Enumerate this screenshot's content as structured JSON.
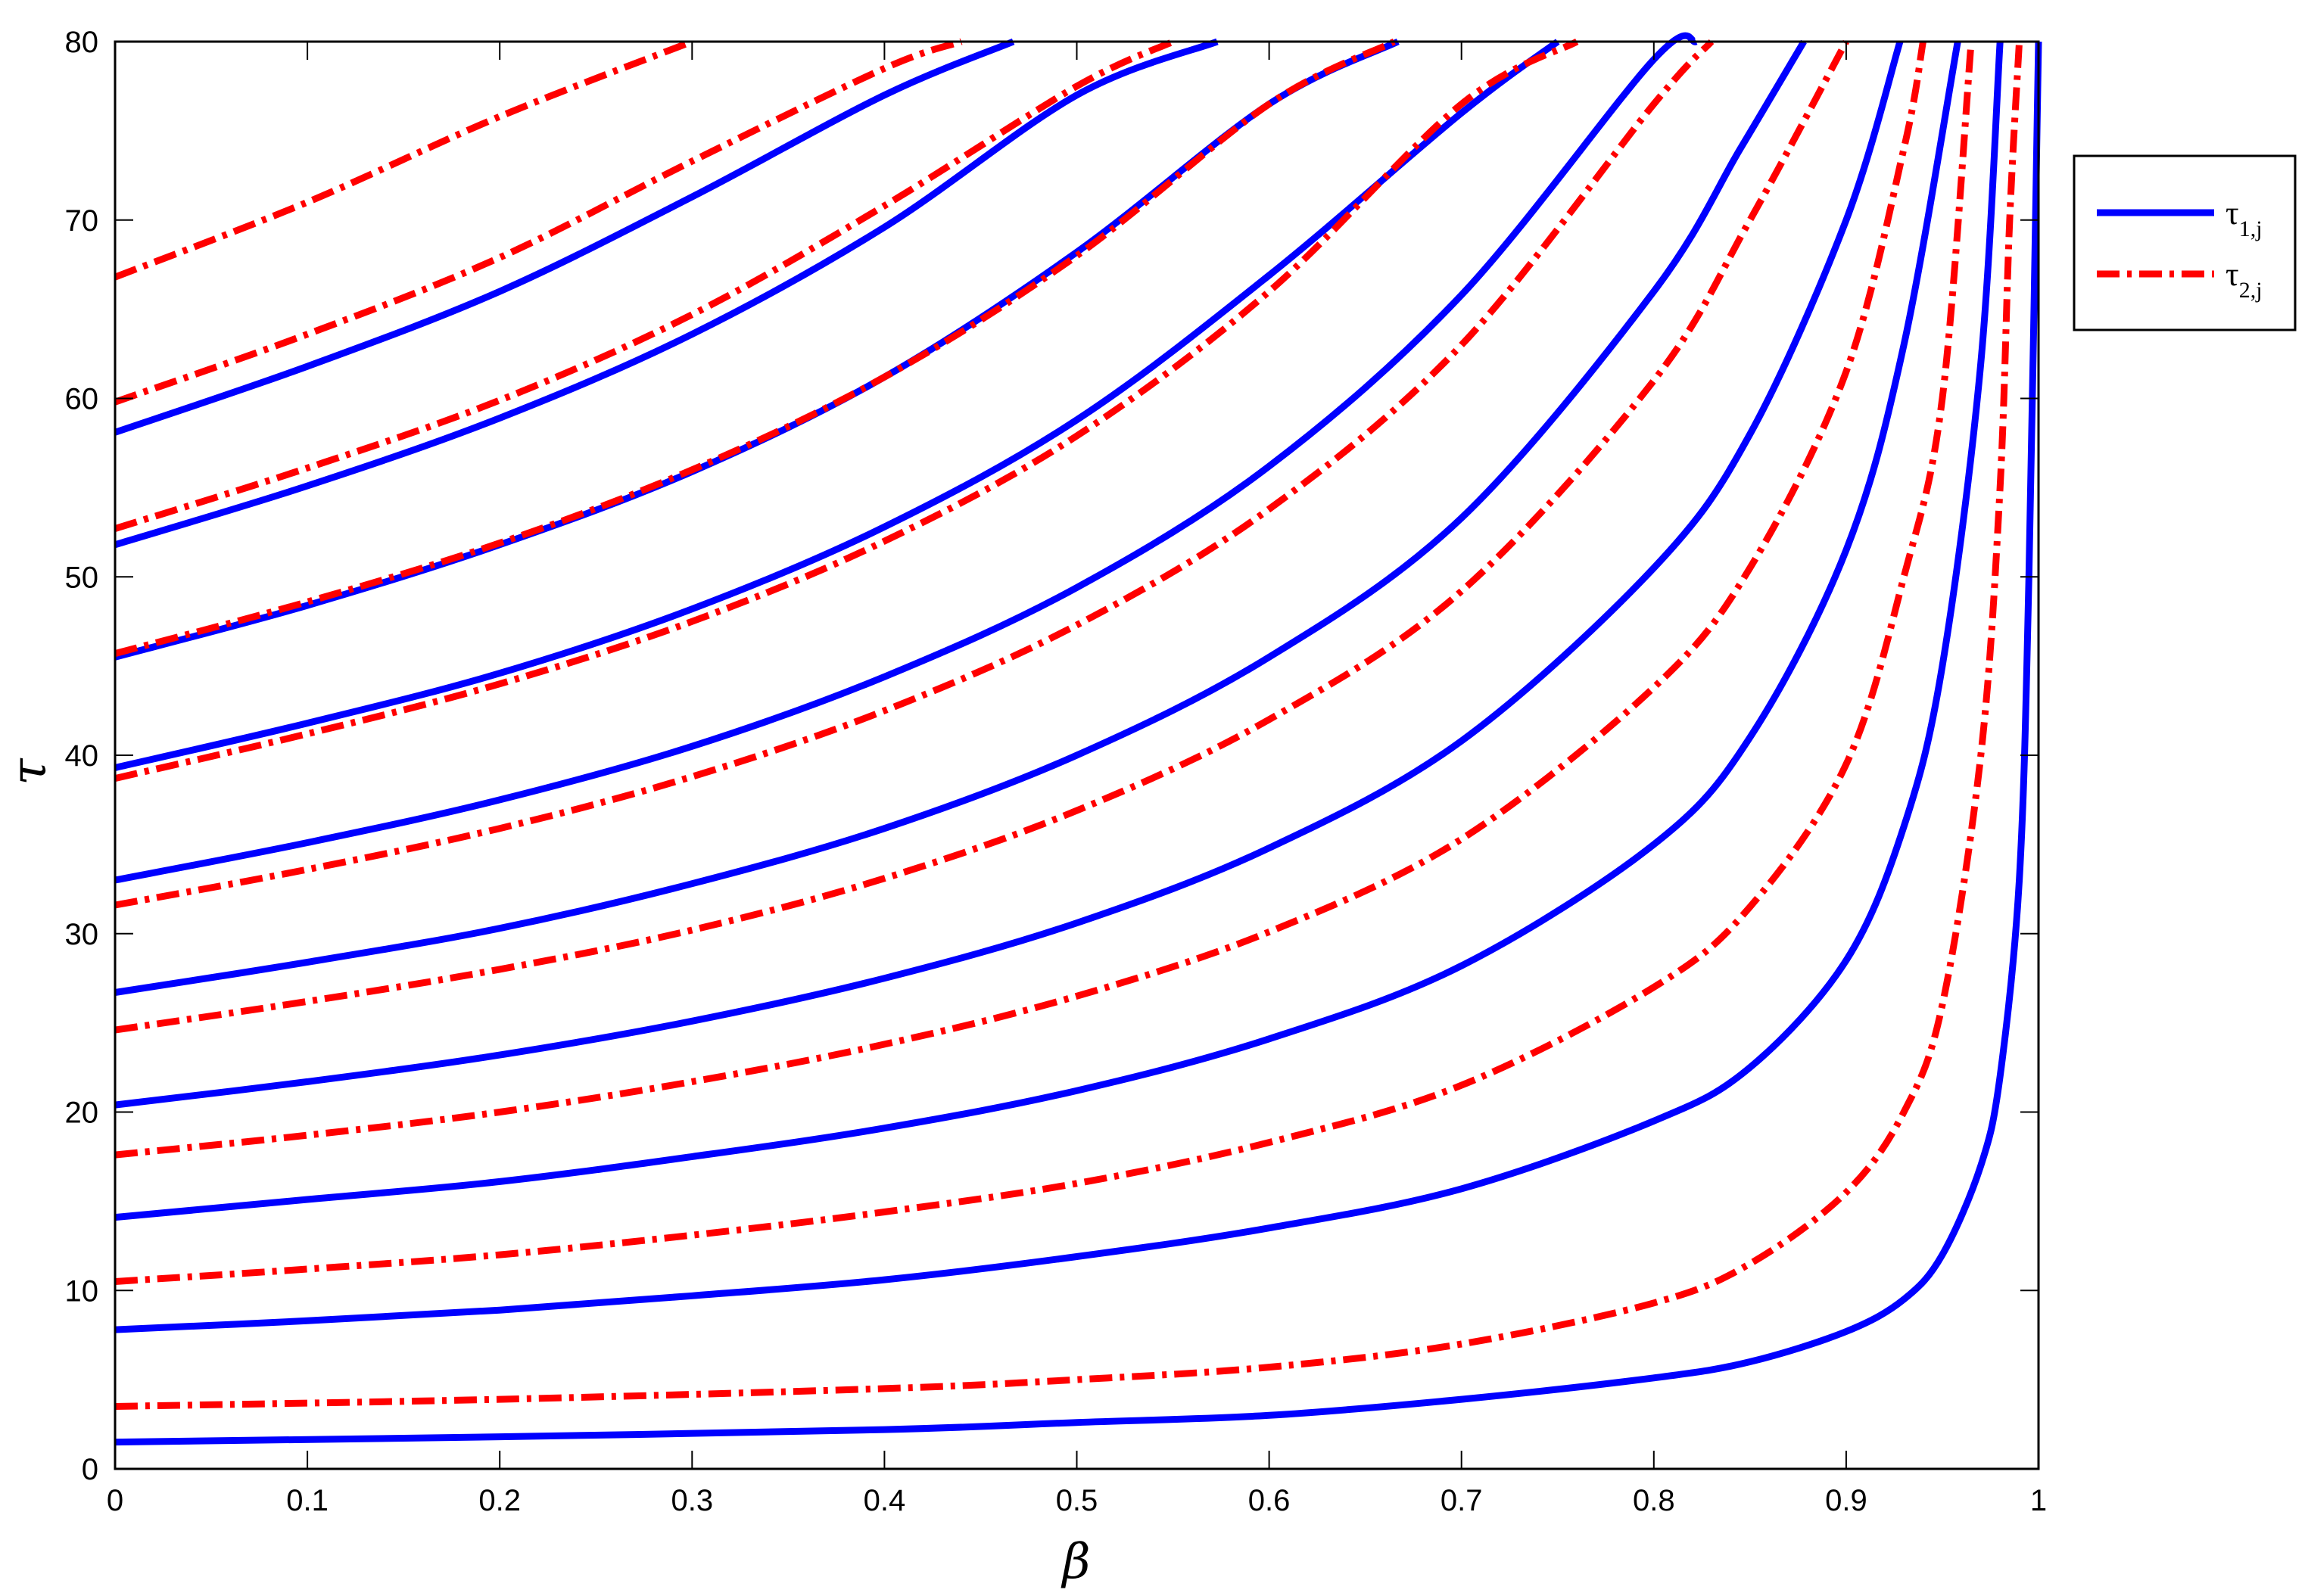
{
  "chart_data": {
    "type": "line",
    "xlabel": "β",
    "ylabel": "τ",
    "xlim": [
      0,
      1
    ],
    "ylim": [
      0,
      80
    ],
    "xticks": [
      "0",
      "0.1",
      "0.2",
      "0.3",
      "0.4",
      "0.5",
      "0.6",
      "0.7",
      "0.8",
      "0.9",
      "1"
    ],
    "yticks": [
      "0",
      "10",
      "20",
      "30",
      "40",
      "50",
      "60",
      "70",
      "80"
    ],
    "grid": false,
    "legend_position": "outside-right-top",
    "legend": [
      {
        "symbol": "τ",
        "subscript": "1,j",
        "style": "solid",
        "color": "#0000ff"
      },
      {
        "symbol": "τ",
        "subscript": "2,j",
        "style": "dashdot",
        "color": "#ff0000"
      }
    ],
    "series": [
      {
        "group": "tau1",
        "color": "#0000ff",
        "style": "solid",
        "points": [
          [
            0,
            1.5
          ],
          [
            0.2,
            1.8
          ],
          [
            0.4,
            2.2
          ],
          [
            0.5,
            2.6
          ],
          [
            0.6,
            3.0
          ],
          [
            0.7,
            3.9
          ],
          [
            0.8,
            5.1
          ],
          [
            0.85,
            6.0
          ],
          [
            0.9,
            7.7
          ],
          [
            0.93,
            9.5
          ],
          [
            0.95,
            12.0
          ],
          [
            0.97,
            17.0
          ],
          [
            0.98,
            22.0
          ],
          [
            0.99,
            33.0
          ],
          [
            0.995,
            50.0
          ],
          [
            1.0,
            80.0
          ]
        ]
      },
      {
        "group": "tau1",
        "color": "#0000ff",
        "style": "solid",
        "points": [
          [
            0,
            7.8
          ],
          [
            0.1,
            8.3
          ],
          [
            0.2,
            8.9
          ],
          [
            0.3,
            9.7
          ],
          [
            0.4,
            10.6
          ],
          [
            0.5,
            11.9
          ],
          [
            0.6,
            13.5
          ],
          [
            0.7,
            15.7
          ],
          [
            0.8,
            19.5
          ],
          [
            0.85,
            22.5
          ],
          [
            0.9,
            28.5
          ],
          [
            0.93,
            36.0
          ],
          [
            0.95,
            45.0
          ],
          [
            0.97,
            62.0
          ],
          [
            0.98,
            80.0
          ]
        ]
      },
      {
        "group": "tau1",
        "color": "#0000ff",
        "style": "solid",
        "points": [
          [
            0,
            14.1
          ],
          [
            0.1,
            15.1
          ],
          [
            0.2,
            16.1
          ],
          [
            0.3,
            17.5
          ],
          [
            0.4,
            19.1
          ],
          [
            0.5,
            21.2
          ],
          [
            0.6,
            24.1
          ],
          [
            0.7,
            28.2
          ],
          [
            0.8,
            35.0
          ],
          [
            0.85,
            41.0
          ],
          [
            0.9,
            51.5
          ],
          [
            0.93,
            63.0
          ],
          [
            0.958,
            80.0
          ]
        ]
      },
      {
        "group": "tau1",
        "color": "#0000ff",
        "style": "solid",
        "points": [
          [
            0,
            20.4
          ],
          [
            0.1,
            21.7
          ],
          [
            0.2,
            23.2
          ],
          [
            0.3,
            25.1
          ],
          [
            0.4,
            27.5
          ],
          [
            0.5,
            30.6
          ],
          [
            0.6,
            34.8
          ],
          [
            0.7,
            40.8
          ],
          [
            0.8,
            50.5
          ],
          [
            0.85,
            58.0
          ],
          [
            0.9,
            70.0
          ],
          [
            0.928,
            80.0
          ]
        ]
      },
      {
        "group": "tau1",
        "color": "#0000ff",
        "style": "solid",
        "points": [
          [
            0,
            26.7
          ],
          [
            0.1,
            28.4
          ],
          [
            0.2,
            30.3
          ],
          [
            0.3,
            32.8
          ],
          [
            0.4,
            35.9
          ],
          [
            0.5,
            40.0
          ],
          [
            0.6,
            45.5
          ],
          [
            0.7,
            53.3
          ],
          [
            0.8,
            66.0
          ],
          [
            0.845,
            74.0
          ],
          [
            0.878,
            80.0
          ]
        ]
      },
      {
        "group": "tau1",
        "color": "#0000ff",
        "style": "solid",
        "points": [
          [
            0,
            33.0
          ],
          [
            0.1,
            35.1
          ],
          [
            0.2,
            37.5
          ],
          [
            0.3,
            40.5
          ],
          [
            0.4,
            44.4
          ],
          [
            0.5,
            49.4
          ],
          [
            0.6,
            56.2
          ],
          [
            0.7,
            65.8
          ],
          [
            0.8,
            79.0
          ],
          [
            0.822,
            80.0
          ]
        ]
      },
      {
        "group": "tau1",
        "color": "#0000ff",
        "style": "solid",
        "points": [
          [
            0,
            39.3
          ],
          [
            0.1,
            41.8
          ],
          [
            0.2,
            44.6
          ],
          [
            0.3,
            48.2
          ],
          [
            0.4,
            52.8
          ],
          [
            0.5,
            58.8
          ],
          [
            0.6,
            66.9
          ],
          [
            0.7,
            76.0
          ],
          [
            0.75,
            80.0
          ]
        ]
      },
      {
        "group": "tau1",
        "color": "#0000ff",
        "style": "solid",
        "points": [
          [
            0,
            45.5
          ],
          [
            0.1,
            48.4
          ],
          [
            0.2,
            51.8
          ],
          [
            0.3,
            55.9
          ],
          [
            0.4,
            61.2
          ],
          [
            0.5,
            68.2
          ],
          [
            0.6,
            76.5
          ],
          [
            0.667,
            80.0
          ]
        ]
      },
      {
        "group": "tau1",
        "color": "#0000ff",
        "style": "solid",
        "points": [
          [
            0,
            51.8
          ],
          [
            0.1,
            55.1
          ],
          [
            0.2,
            58.9
          ],
          [
            0.3,
            63.6
          ],
          [
            0.4,
            69.6
          ],
          [
            0.5,
            77.0
          ],
          [
            0.573,
            80.0
          ]
        ]
      },
      {
        "group": "tau1",
        "color": "#0000ff",
        "style": "solid",
        "points": [
          [
            0,
            58.1
          ],
          [
            0.1,
            61.8
          ],
          [
            0.2,
            66.0
          ],
          [
            0.3,
            71.3
          ],
          [
            0.4,
            77.0
          ],
          [
            0.467,
            80.0
          ]
        ]
      },
      {
        "group": "tau2",
        "color": "#ff0000",
        "style": "dashdot",
        "points": [
          [
            0,
            3.5
          ],
          [
            0.2,
            3.9
          ],
          [
            0.4,
            4.5
          ],
          [
            0.5,
            5.0
          ],
          [
            0.6,
            5.7
          ],
          [
            0.7,
            7.0
          ],
          [
            0.8,
            9.3
          ],
          [
            0.85,
            11.5
          ],
          [
            0.9,
            15.5
          ],
          [
            0.93,
            20.0
          ],
          [
            0.95,
            26.0
          ],
          [
            0.97,
            40.0
          ],
          [
            0.98,
            55.0
          ],
          [
            0.985,
            70.0
          ],
          [
            0.99,
            80.0
          ]
        ]
      },
      {
        "group": "tau2",
        "color": "#ff0000",
        "style": "dashdot",
        "points": [
          [
            0,
            10.5
          ],
          [
            0.1,
            11.2
          ],
          [
            0.2,
            12.0
          ],
          [
            0.3,
            13.1
          ],
          [
            0.4,
            14.4
          ],
          [
            0.5,
            16.0
          ],
          [
            0.6,
            18.3
          ],
          [
            0.7,
            21.5
          ],
          [
            0.8,
            27.0
          ],
          [
            0.85,
            31.5
          ],
          [
            0.9,
            39.5
          ],
          [
            0.93,
            50.0
          ],
          [
            0.95,
            60.0
          ],
          [
            0.965,
            80.0
          ]
        ]
      },
      {
        "group": "tau2",
        "color": "#ff0000",
        "style": "dashdot",
        "points": [
          [
            0,
            17.6
          ],
          [
            0.1,
            18.7
          ],
          [
            0.2,
            20.0
          ],
          [
            0.3,
            21.7
          ],
          [
            0.4,
            23.8
          ],
          [
            0.5,
            26.5
          ],
          [
            0.6,
            30.1
          ],
          [
            0.7,
            35.3
          ],
          [
            0.8,
            43.8
          ],
          [
            0.85,
            50.5
          ],
          [
            0.9,
            61.5
          ],
          [
            0.93,
            74.0
          ],
          [
            0.94,
            80.0
          ]
        ]
      },
      {
        "group": "tau2",
        "color": "#ff0000",
        "style": "dashdot",
        "points": [
          [
            0,
            24.6
          ],
          [
            0.1,
            26.2
          ],
          [
            0.2,
            28.0
          ],
          [
            0.3,
            30.2
          ],
          [
            0.4,
            33.1
          ],
          [
            0.5,
            36.9
          ],
          [
            0.6,
            42.0
          ],
          [
            0.7,
            49.2
          ],
          [
            0.8,
            61.0
          ],
          [
            0.85,
            70.0
          ],
          [
            0.9,
            80.0
          ]
        ]
      },
      {
        "group": "tau2",
        "color": "#ff0000",
        "style": "dashdot",
        "points": [
          [
            0,
            31.6
          ],
          [
            0.1,
            33.6
          ],
          [
            0.2,
            35.9
          ],
          [
            0.3,
            38.8
          ],
          [
            0.4,
            42.5
          ],
          [
            0.5,
            47.3
          ],
          [
            0.6,
            53.8
          ],
          [
            0.7,
            63.0
          ],
          [
            0.8,
            76.5
          ],
          [
            0.83,
            80.0
          ]
        ]
      },
      {
        "group": "tau2",
        "color": "#ff0000",
        "style": "dashdot",
        "points": [
          [
            0,
            38.7
          ],
          [
            0.1,
            41.2
          ],
          [
            0.2,
            44.0
          ],
          [
            0.3,
            47.5
          ],
          [
            0.4,
            52.0
          ],
          [
            0.5,
            57.9
          ],
          [
            0.6,
            66.0
          ],
          [
            0.7,
            76.5
          ],
          [
            0.76,
            80.0
          ]
        ]
      },
      {
        "group": "tau2",
        "color": "#ff0000",
        "style": "dashdot",
        "points": [
          [
            0,
            45.7
          ],
          [
            0.1,
            48.6
          ],
          [
            0.2,
            51.9
          ],
          [
            0.3,
            56.0
          ],
          [
            0.4,
            61.2
          ],
          [
            0.5,
            68.0
          ],
          [
            0.6,
            76.5
          ],
          [
            0.665,
            80.0
          ]
        ]
      },
      {
        "group": "tau2",
        "color": "#ff0000",
        "style": "dashdot",
        "points": [
          [
            0,
            52.7
          ],
          [
            0.1,
            56.1
          ],
          [
            0.2,
            59.9
          ],
          [
            0.3,
            64.7
          ],
          [
            0.4,
            70.8
          ],
          [
            0.5,
            77.5
          ],
          [
            0.55,
            80.0
          ]
        ]
      },
      {
        "group": "tau2",
        "color": "#ff0000",
        "style": "dashdot",
        "points": [
          [
            0,
            59.8
          ],
          [
            0.1,
            63.6
          ],
          [
            0.2,
            67.9
          ],
          [
            0.3,
            73.3
          ],
          [
            0.4,
            78.5
          ],
          [
            0.44,
            80.0
          ]
        ]
      },
      {
        "group": "tau2",
        "color": "#ff0000",
        "style": "dashdot",
        "points": [
          [
            0,
            66.8
          ],
          [
            0.1,
            71.0
          ],
          [
            0.2,
            75.8
          ],
          [
            0.3,
            80.0
          ]
        ]
      }
    ]
  }
}
